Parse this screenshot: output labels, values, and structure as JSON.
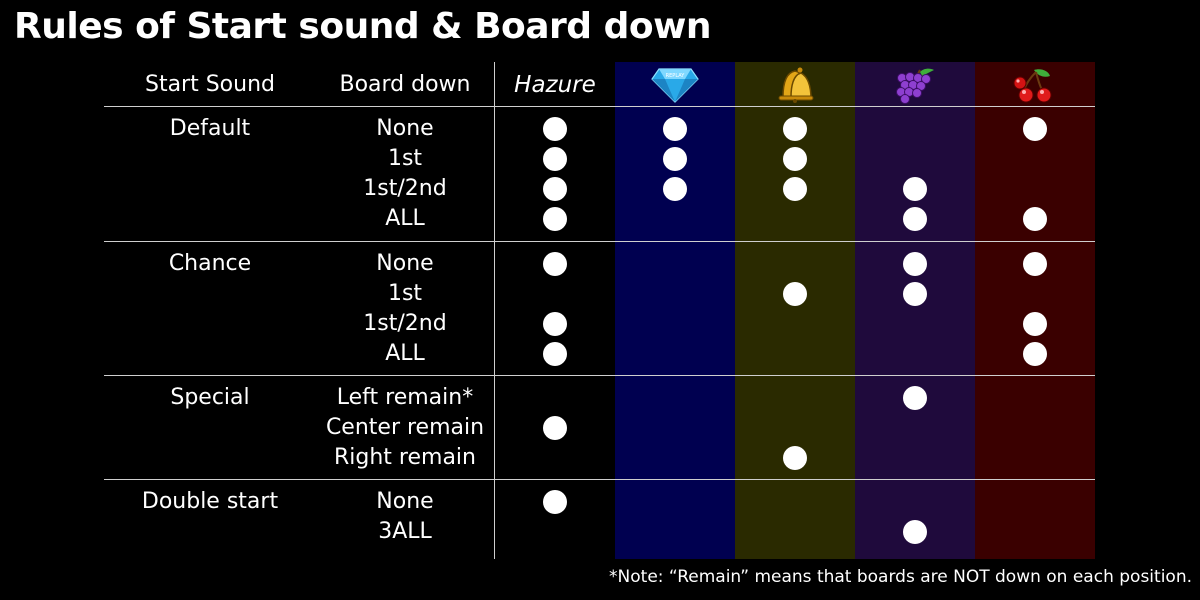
{
  "title": "Rules of Start sound & Board down",
  "headers": {
    "start_sound": "Start Sound",
    "board_down": "Board down",
    "hazure": "Hazure",
    "replay_label": "REPLAY"
  },
  "symbols": [
    "hazure",
    "replay-diamond",
    "bell",
    "grape",
    "cherry"
  ],
  "colors": {
    "background": "#000000",
    "hazure_column": "#000000",
    "replay_column": "#000050",
    "bell_column": "#2a2a00",
    "grape_column": "#1f0a3c",
    "cherry_column": "#3a0000"
  },
  "groups": [
    {
      "category": "Default",
      "rows": [
        {
          "board": "None",
          "marks": [
            true,
            true,
            true,
            false,
            true
          ]
        },
        {
          "board": "1st",
          "marks": [
            true,
            true,
            true,
            false,
            false
          ]
        },
        {
          "board": "1st/2nd",
          "marks": [
            true,
            true,
            true,
            true,
            false
          ]
        },
        {
          "board": "ALL",
          "marks": [
            true,
            false,
            false,
            true,
            true
          ]
        }
      ]
    },
    {
      "category": "Chance",
      "rows": [
        {
          "board": "None",
          "marks": [
            true,
            false,
            false,
            true,
            true
          ]
        },
        {
          "board": "1st",
          "marks": [
            false,
            false,
            true,
            true,
            false
          ]
        },
        {
          "board": "1st/2nd",
          "marks": [
            true,
            false,
            false,
            false,
            true
          ]
        },
        {
          "board": "ALL",
          "marks": [
            true,
            false,
            false,
            false,
            true
          ]
        }
      ]
    },
    {
      "category": "Special",
      "rows": [
        {
          "board": "Left remain*",
          "marks": [
            false,
            false,
            false,
            true,
            false
          ]
        },
        {
          "board": "Center remain",
          "marks": [
            true,
            false,
            false,
            false,
            false
          ]
        },
        {
          "board": "Right remain",
          "marks": [
            false,
            false,
            true,
            false,
            false
          ]
        }
      ]
    },
    {
      "category": "Double start",
      "rows": [
        {
          "board": "None",
          "marks": [
            true,
            false,
            false,
            false,
            false
          ]
        },
        {
          "board": "3ALL",
          "marks": [
            false,
            false,
            false,
            true,
            false
          ]
        }
      ]
    }
  ],
  "note": "*Note: “Remain” means that boards are NOT down on each position."
}
